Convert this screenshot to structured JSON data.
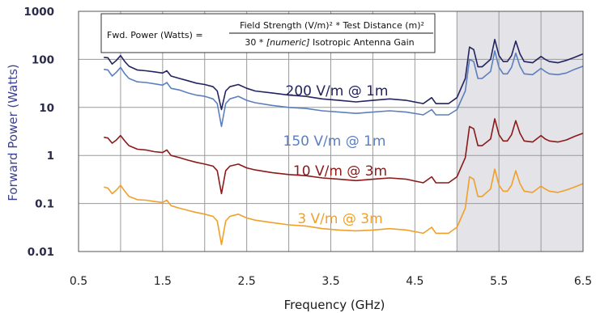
{
  "chart_data": {
    "type": "line",
    "xlabel": "Frequency (GHz)",
    "ylabel": "Forward Power (Watts)",
    "xlim": [
      0.5,
      6.5
    ],
    "ylim": [
      0.01,
      1000
    ],
    "yscale": "log",
    "x_ticks": [
      "0.5",
      "1.5",
      "2.5",
      "3.5",
      "4.5",
      "5.5",
      "6.5"
    ],
    "y_ticks": [
      "1000",
      "100",
      "10",
      "1",
      "0.1",
      "0.01"
    ],
    "grid": true,
    "shaded_region": {
      "x_from": 5.0,
      "x_to": 6.5,
      "color": "#e3e3e8"
    },
    "formula": {
      "lhs": "Fwd. Power (Watts) =",
      "numerator": "Field Strength (V/m)² * Test Distance (m)²",
      "denominator_prefix": "30 * ",
      "denominator_italic": "[numeric]",
      "denominator_suffix": " Isotropic Antenna Gain"
    },
    "colors": {
      "s200": "#23235f",
      "s150": "#5b7fbf",
      "s10": "#8b1a1a",
      "s3": "#f0a02a",
      "shade": "#e3e3e8"
    },
    "series": [
      {
        "name": "200 V/m @ 1m",
        "color": "#23235f",
        "points": [
          [
            0.8,
            110
          ],
          [
            0.85,
            108
          ],
          [
            0.9,
            80
          ],
          [
            0.95,
            95
          ],
          [
            1.0,
            120
          ],
          [
            1.05,
            90
          ],
          [
            1.1,
            72
          ],
          [
            1.2,
            60
          ],
          [
            1.3,
            58
          ],
          [
            1.4,
            55
          ],
          [
            1.5,
            52
          ],
          [
            1.55,
            58
          ],
          [
            1.6,
            45
          ],
          [
            1.7,
            40
          ],
          [
            1.8,
            36
          ],
          [
            1.9,
            32
          ],
          [
            2.0,
            30
          ],
          [
            2.1,
            27
          ],
          [
            2.15,
            22
          ],
          [
            2.2,
            9
          ],
          [
            2.25,
            22
          ],
          [
            2.3,
            27
          ],
          [
            2.4,
            30
          ],
          [
            2.5,
            25
          ],
          [
            2.6,
            22
          ],
          [
            2.8,
            20
          ],
          [
            3.0,
            18
          ],
          [
            3.2,
            17
          ],
          [
            3.4,
            15
          ],
          [
            3.6,
            14
          ],
          [
            3.8,
            13
          ],
          [
            4.0,
            14
          ],
          [
            4.2,
            15
          ],
          [
            4.4,
            14
          ],
          [
            4.6,
            12
          ],
          [
            4.7,
            16
          ],
          [
            4.75,
            12
          ],
          [
            4.8,
            12
          ],
          [
            4.9,
            12
          ],
          [
            5.0,
            16
          ],
          [
            5.1,
            40
          ],
          [
            5.15,
            180
          ],
          [
            5.2,
            160
          ],
          [
            5.25,
            70
          ],
          [
            5.3,
            70
          ],
          [
            5.4,
            100
          ],
          [
            5.45,
            260
          ],
          [
            5.5,
            120
          ],
          [
            5.55,
            90
          ],
          [
            5.6,
            90
          ],
          [
            5.65,
            120
          ],
          [
            5.7,
            240
          ],
          [
            5.75,
            130
          ],
          [
            5.8,
            90
          ],
          [
            5.9,
            85
          ],
          [
            6.0,
            115
          ],
          [
            6.05,
            100
          ],
          [
            6.1,
            90
          ],
          [
            6.2,
            85
          ],
          [
            6.3,
            95
          ],
          [
            6.4,
            110
          ],
          [
            6.5,
            130
          ]
        ]
      },
      {
        "name": "150 V/m @ 1m",
        "color": "#5b7fbf",
        "points": [
          [
            0.8,
            62
          ],
          [
            0.85,
            60
          ],
          [
            0.9,
            45
          ],
          [
            0.95,
            54
          ],
          [
            1.0,
            68
          ],
          [
            1.05,
            50
          ],
          [
            1.1,
            40
          ],
          [
            1.2,
            34
          ],
          [
            1.3,
            33
          ],
          [
            1.4,
            31
          ],
          [
            1.5,
            29
          ],
          [
            1.55,
            33
          ],
          [
            1.6,
            25
          ],
          [
            1.7,
            23
          ],
          [
            1.8,
            20
          ],
          [
            1.9,
            18
          ],
          [
            2.0,
            17
          ],
          [
            2.1,
            15
          ],
          [
            2.15,
            12
          ],
          [
            2.2,
            4
          ],
          [
            2.25,
            12
          ],
          [
            2.3,
            15
          ],
          [
            2.4,
            17
          ],
          [
            2.5,
            14
          ],
          [
            2.6,
            12.5
          ],
          [
            2.8,
            11
          ],
          [
            3.0,
            10
          ],
          [
            3.2,
            9.5
          ],
          [
            3.4,
            8.5
          ],
          [
            3.6,
            8
          ],
          [
            3.8,
            7.5
          ],
          [
            4.0,
            8
          ],
          [
            4.2,
            8.5
          ],
          [
            4.4,
            8
          ],
          [
            4.6,
            7
          ],
          [
            4.7,
            9
          ],
          [
            4.75,
            7
          ],
          [
            4.8,
            7
          ],
          [
            4.9,
            7
          ],
          [
            5.0,
            9
          ],
          [
            5.1,
            22
          ],
          [
            5.15,
            100
          ],
          [
            5.2,
            90
          ],
          [
            5.25,
            40
          ],
          [
            5.3,
            40
          ],
          [
            5.4,
            56
          ],
          [
            5.45,
            150
          ],
          [
            5.5,
            68
          ],
          [
            5.55,
            50
          ],
          [
            5.6,
            50
          ],
          [
            5.65,
            68
          ],
          [
            5.7,
            135
          ],
          [
            5.75,
            72
          ],
          [
            5.8,
            50
          ],
          [
            5.9,
            48
          ],
          [
            6.0,
            65
          ],
          [
            6.05,
            56
          ],
          [
            6.1,
            50
          ],
          [
            6.2,
            48
          ],
          [
            6.3,
            52
          ],
          [
            6.4,
            62
          ],
          [
            6.5,
            72
          ]
        ]
      },
      {
        "name": "10 V/m @ 3m",
        "color": "#8b1a1a",
        "points": [
          [
            0.8,
            2.4
          ],
          [
            0.85,
            2.3
          ],
          [
            0.9,
            1.8
          ],
          [
            0.95,
            2.1
          ],
          [
            1.0,
            2.6
          ],
          [
            1.05,
            2.0
          ],
          [
            1.1,
            1.6
          ],
          [
            1.2,
            1.35
          ],
          [
            1.3,
            1.3
          ],
          [
            1.4,
            1.2
          ],
          [
            1.5,
            1.15
          ],
          [
            1.55,
            1.3
          ],
          [
            1.6,
            1.0
          ],
          [
            1.7,
            0.9
          ],
          [
            1.8,
            0.8
          ],
          [
            1.9,
            0.72
          ],
          [
            2.0,
            0.66
          ],
          [
            2.1,
            0.6
          ],
          [
            2.15,
            0.48
          ],
          [
            2.2,
            0.16
          ],
          [
            2.25,
            0.48
          ],
          [
            2.3,
            0.6
          ],
          [
            2.4,
            0.66
          ],
          [
            2.5,
            0.55
          ],
          [
            2.6,
            0.5
          ],
          [
            2.8,
            0.44
          ],
          [
            3.0,
            0.4
          ],
          [
            3.2,
            0.38
          ],
          [
            3.4,
            0.34
          ],
          [
            3.6,
            0.32
          ],
          [
            3.8,
            0.3
          ],
          [
            4.0,
            0.32
          ],
          [
            4.2,
            0.34
          ],
          [
            4.4,
            0.32
          ],
          [
            4.6,
            0.27
          ],
          [
            4.7,
            0.36
          ],
          [
            4.75,
            0.27
          ],
          [
            4.8,
            0.27
          ],
          [
            4.9,
            0.27
          ],
          [
            5.0,
            0.36
          ],
          [
            5.1,
            0.9
          ],
          [
            5.15,
            4.0
          ],
          [
            5.2,
            3.6
          ],
          [
            5.25,
            1.6
          ],
          [
            5.3,
            1.6
          ],
          [
            5.4,
            2.2
          ],
          [
            5.45,
            5.8
          ],
          [
            5.5,
            2.7
          ],
          [
            5.55,
            2.0
          ],
          [
            5.6,
            2.0
          ],
          [
            5.65,
            2.7
          ],
          [
            5.7,
            5.3
          ],
          [
            5.75,
            2.9
          ],
          [
            5.8,
            2.0
          ],
          [
            5.9,
            1.9
          ],
          [
            6.0,
            2.6
          ],
          [
            6.05,
            2.2
          ],
          [
            6.1,
            2.0
          ],
          [
            6.2,
            1.9
          ],
          [
            6.3,
            2.1
          ],
          [
            6.4,
            2.5
          ],
          [
            6.5,
            2.9
          ]
        ]
      },
      {
        "name": "3 V/m @ 3m",
        "color": "#f0a02a",
        "points": [
          [
            0.8,
            0.22
          ],
          [
            0.85,
            0.21
          ],
          [
            0.9,
            0.16
          ],
          [
            0.95,
            0.19
          ],
          [
            1.0,
            0.24
          ],
          [
            1.05,
            0.18
          ],
          [
            1.1,
            0.14
          ],
          [
            1.2,
            0.12
          ],
          [
            1.3,
            0.117
          ],
          [
            1.4,
            0.11
          ],
          [
            1.5,
            0.105
          ],
          [
            1.55,
            0.117
          ],
          [
            1.6,
            0.09
          ],
          [
            1.7,
            0.08
          ],
          [
            1.8,
            0.072
          ],
          [
            1.9,
            0.065
          ],
          [
            2.0,
            0.06
          ],
          [
            2.1,
            0.054
          ],
          [
            2.15,
            0.043
          ],
          [
            2.2,
            0.014
          ],
          [
            2.25,
            0.043
          ],
          [
            2.3,
            0.054
          ],
          [
            2.4,
            0.06
          ],
          [
            2.5,
            0.05
          ],
          [
            2.6,
            0.045
          ],
          [
            2.8,
            0.04
          ],
          [
            3.0,
            0.036
          ],
          [
            3.2,
            0.034
          ],
          [
            3.4,
            0.03
          ],
          [
            3.6,
            0.028
          ],
          [
            3.8,
            0.027
          ],
          [
            4.0,
            0.028
          ],
          [
            4.2,
            0.03
          ],
          [
            4.4,
            0.028
          ],
          [
            4.6,
            0.024
          ],
          [
            4.7,
            0.032
          ],
          [
            4.75,
            0.024
          ],
          [
            4.8,
            0.024
          ],
          [
            4.9,
            0.024
          ],
          [
            5.0,
            0.032
          ],
          [
            5.1,
            0.08
          ],
          [
            5.15,
            0.36
          ],
          [
            5.2,
            0.32
          ],
          [
            5.25,
            0.14
          ],
          [
            5.3,
            0.14
          ],
          [
            5.4,
            0.2
          ],
          [
            5.45,
            0.52
          ],
          [
            5.5,
            0.24
          ],
          [
            5.55,
            0.18
          ],
          [
            5.6,
            0.18
          ],
          [
            5.65,
            0.24
          ],
          [
            5.7,
            0.48
          ],
          [
            5.75,
            0.26
          ],
          [
            5.8,
            0.18
          ],
          [
            5.9,
            0.17
          ],
          [
            6.0,
            0.23
          ],
          [
            6.05,
            0.2
          ],
          [
            6.1,
            0.18
          ],
          [
            6.2,
            0.17
          ],
          [
            6.3,
            0.19
          ],
          [
            6.4,
            0.22
          ],
          [
            6.5,
            0.26
          ]
        ]
      }
    ]
  }
}
